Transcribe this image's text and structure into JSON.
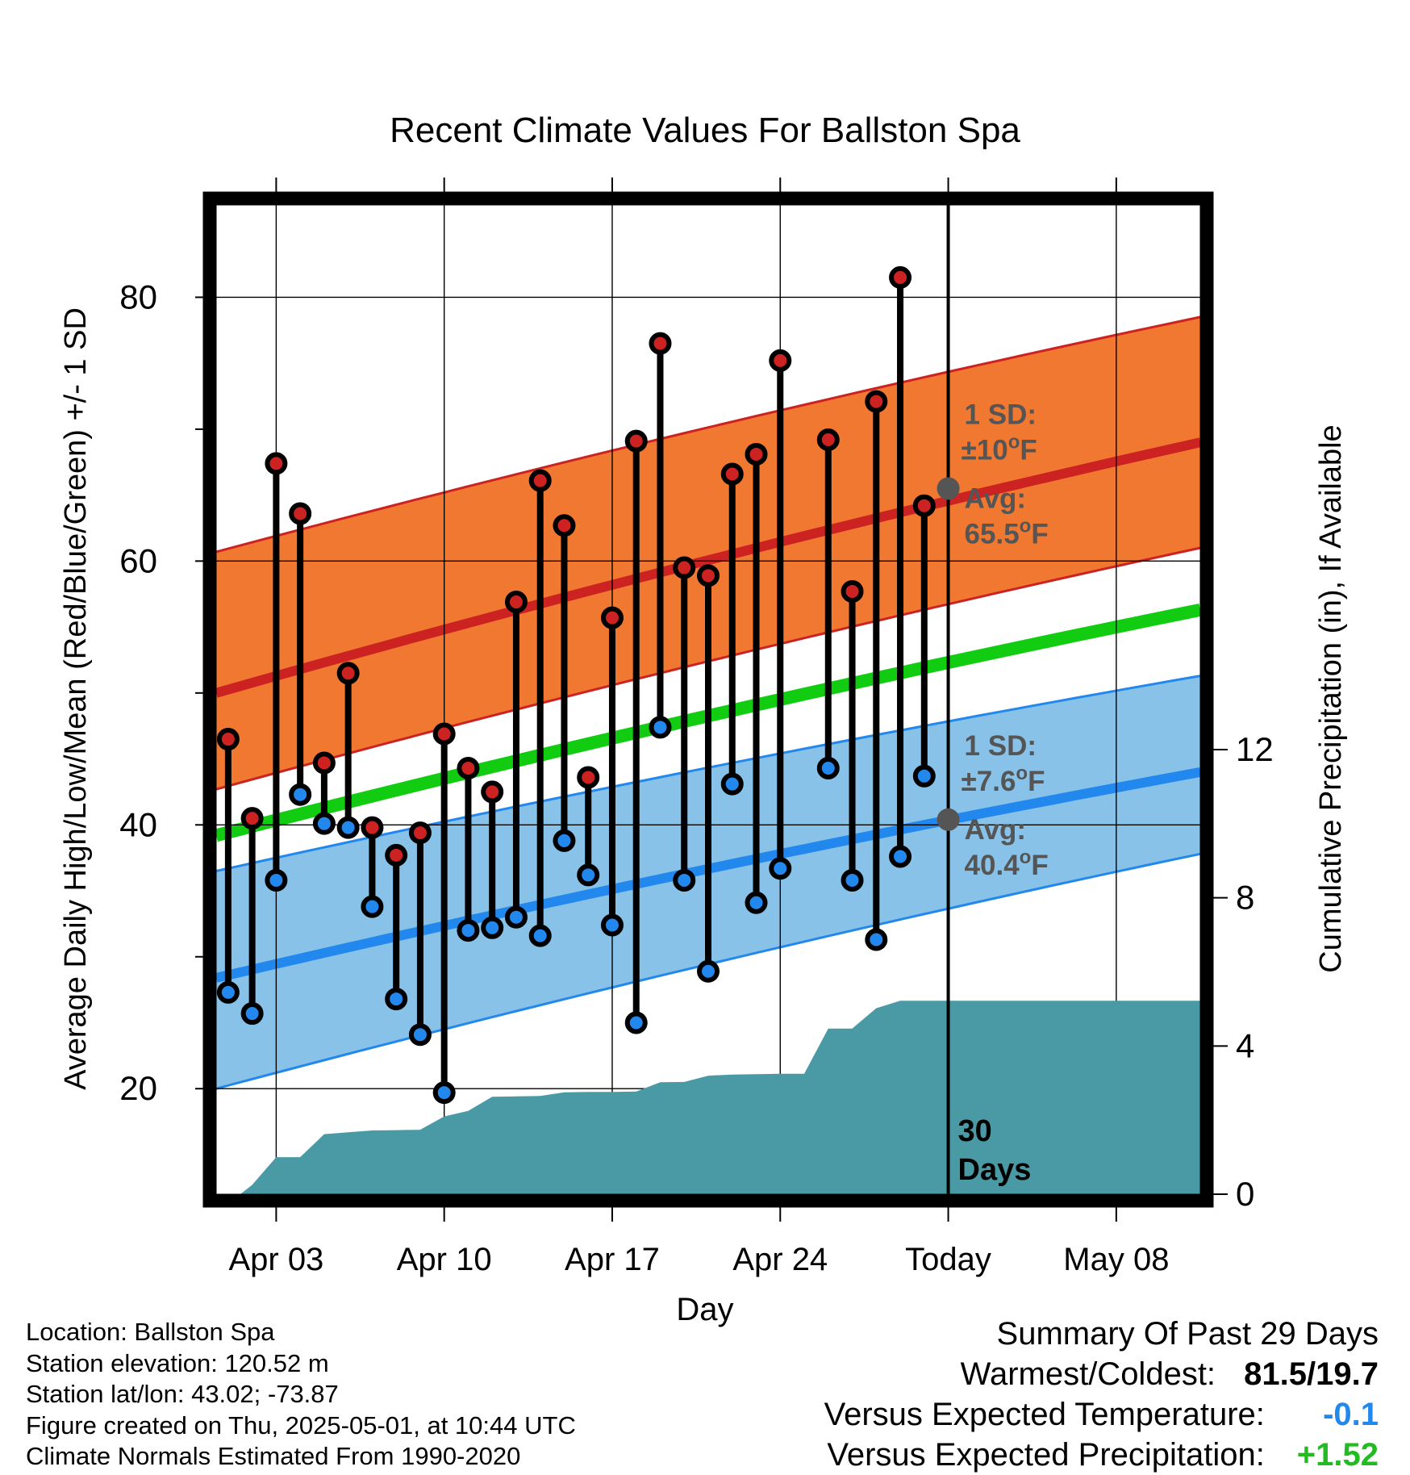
{
  "chart_data": {
    "type": "line",
    "title": "Recent Climate Values For Ballston Spa",
    "xlabel": "Day",
    "ylabel": "Average Daily High/Low/Mean (Red/Blue/Green) +/- 1 SD",
    "y2label": "Cumulative Precipitation (in), If Available",
    "xlim": [
      -0.5,
      40.5
    ],
    "ylim": [
      12,
      87
    ],
    "y2lim": [
      0,
      26.7
    ],
    "x_ticks": [
      {
        "x": 2,
        "label": "Apr 03"
      },
      {
        "x": 9,
        "label": "Apr 10"
      },
      {
        "x": 16,
        "label": "Apr 17"
      },
      {
        "x": 23,
        "label": "Apr 24"
      },
      {
        "x": 30,
        "label": "Today"
      },
      {
        "x": 37,
        "label": "May 08"
      }
    ],
    "y_ticks": [
      20,
      40,
      60,
      80
    ],
    "y2_ticks": [
      0,
      4,
      8,
      12
    ],
    "grid": true,
    "today_x": 30,
    "today_label_line1": "30",
    "today_label_line2": "Days",
    "normals": {
      "x": [
        -0.5,
        40.5
      ],
      "high_mean": [
        50.0,
        69.0
      ],
      "high_sd_upper": [
        60.7,
        78.5
      ],
      "high_sd_lower": [
        42.7,
        61.0
      ],
      "mean": [
        39.2,
        56.3
      ],
      "low_mean": [
        28.4,
        44.0
      ],
      "low_sd_upper": [
        36.5,
        51.3
      ],
      "low_sd_lower": [
        20.0,
        37.8
      ]
    },
    "high_annotation": {
      "line1": "1 SD:",
      "line2": "±10",
      "unit": "F",
      "line3": "Avg:",
      "line4": "65.5",
      "value": 65.5
    },
    "low_annotation": {
      "line1": "1 SD:",
      "line2": "±7.6",
      "unit": "F",
      "line3": "Avg:",
      "line4": "40.4",
      "value": 40.4
    },
    "series": [
      {
        "name": "High",
        "color": "#cc2222",
        "x": [
          0,
          1,
          2,
          3,
          4,
          5,
          6,
          7,
          8,
          9,
          10,
          11,
          12,
          13,
          14,
          15,
          16,
          17,
          18,
          19,
          20,
          21,
          22,
          23,
          25,
          26,
          27,
          28,
          29
        ],
        "values": [
          46.5,
          40.5,
          67.4,
          63.6,
          44.7,
          51.5,
          39.8,
          37.7,
          39.4,
          46.9,
          44.3,
          42.5,
          56.9,
          66.1,
          62.7,
          43.6,
          55.7,
          69.1,
          76.5,
          59.5,
          58.9,
          66.6,
          68.1,
          75.2,
          69.2,
          57.7,
          72.1,
          81.5,
          64.2
        ]
      },
      {
        "name": "Low",
        "color": "#2288ee",
        "x": [
          0,
          1,
          2,
          3,
          4,
          5,
          6,
          7,
          8,
          9,
          10,
          11,
          12,
          13,
          14,
          15,
          16,
          17,
          18,
          19,
          20,
          21,
          22,
          23,
          25,
          26,
          27,
          28,
          29
        ],
        "values": [
          27.3,
          25.7,
          35.8,
          42.3,
          40.1,
          39.8,
          33.8,
          26.8,
          24.1,
          19.7,
          32.0,
          32.2,
          33.0,
          31.6,
          38.8,
          36.2,
          32.4,
          25.0,
          47.4,
          35.8,
          28.9,
          43.1,
          34.1,
          36.7,
          44.3,
          35.8,
          31.3,
          37.6,
          43.7
        ]
      },
      {
        "name": "Cumulative Precipitation",
        "color": "#4a9aa5",
        "x": [
          0,
          0.5,
          1,
          2,
          3,
          4,
          5,
          6,
          7,
          8,
          9,
          10,
          11,
          12,
          13,
          14,
          15,
          16,
          17,
          18,
          19,
          20,
          21,
          22,
          23,
          24,
          25,
          26,
          27,
          28,
          40.5
        ],
        "values": [
          0,
          0,
          0.25,
          1.0,
          1.0,
          1.62,
          1.67,
          1.72,
          1.73,
          1.74,
          2.1,
          2.25,
          2.63,
          2.64,
          2.65,
          2.75,
          2.76,
          2.76,
          2.77,
          3.02,
          3.03,
          3.2,
          3.23,
          3.24,
          3.25,
          3.25,
          4.47,
          4.47,
          5.02,
          5.22,
          5.22
        ]
      }
    ]
  },
  "footer": {
    "location": "Location: Ballston Spa",
    "elevation": "Station elevation: 120.52 m",
    "latlon": "Station lat/lon: 43.02; -73.87",
    "created": "Figure created on Thu, 2025-05-01, at 10:44 UTC",
    "normals": "Climate Normals Estimated From 1990-2020"
  },
  "summary": {
    "title": "Summary Of Past 29 Days",
    "warm_label": "Warmest/Coldest:",
    "warm_value": "81.5/19.7",
    "temp_label": "Versus Expected Temperature:",
    "temp_value": "-0.1",
    "precip_label": "Versus Expected Precipitation:",
    "precip_value": "+1.52",
    "colors": {
      "temp": "#2288ee",
      "precip": "#22bb22"
    }
  }
}
